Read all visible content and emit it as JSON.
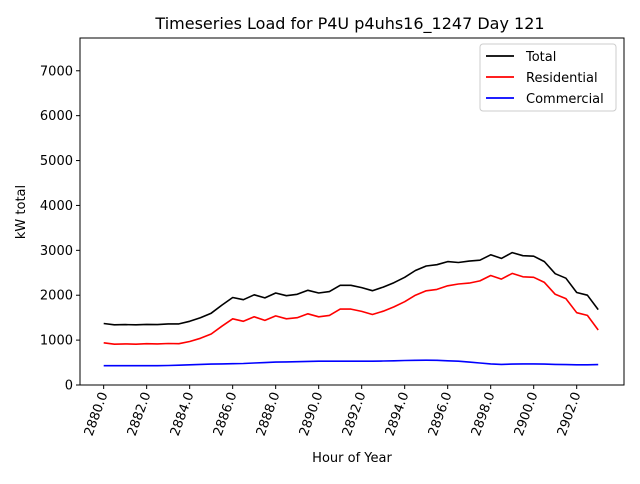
{
  "chart_data": {
    "type": "line",
    "title": "Timeseries Load for P4U p4uhs16_1247  Day 121",
    "xlabel": "Hour of Year",
    "ylabel": "kW total",
    "xlim": [
      2878.9,
      2904.2
    ],
    "ylim": [
      0,
      7730
    ],
    "xticks": [
      2880,
      2882,
      2884,
      2886,
      2888,
      2890,
      2892,
      2894,
      2896,
      2898,
      2900,
      2902
    ],
    "xtick_labels": [
      "2880.0",
      "2882.0",
      "2884.0",
      "2886.0",
      "2888.0",
      "2890.0",
      "2892.0",
      "2894.0",
      "2896.0",
      "2898.0",
      "2900.0",
      "2902.0"
    ],
    "yticks": [
      0,
      1000,
      2000,
      3000,
      4000,
      5000,
      6000,
      7000
    ],
    "ytick_labels": [
      "0",
      "1000",
      "2000",
      "3000",
      "4000",
      "5000",
      "6000",
      "7000"
    ],
    "grid": false,
    "legend_position": "top-right",
    "x_start": 2880,
    "x_step": 0.5,
    "series": [
      {
        "name": "Total",
        "color": "#000000",
        "values": [
          1370,
          1340,
          1345,
          1340,
          1350,
          1345,
          1360,
          1360,
          1420,
          1500,
          1600,
          1780,
          1950,
          1900,
          2010,
          1940,
          2050,
          1990,
          2020,
          2110,
          2050,
          2080,
          2220,
          2220,
          2170,
          2100,
          2180,
          2280,
          2400,
          2550,
          2650,
          2680,
          2750,
          2730,
          2760,
          2780,
          2900,
          2820,
          2950,
          2880,
          2870,
          2750,
          2480,
          2380,
          2060,
          2000,
          1680
        ]
      },
      {
        "name": "Residential",
        "color": "#ff0000",
        "values": [
          940,
          910,
          915,
          910,
          920,
          915,
          925,
          920,
          970,
          1040,
          1135,
          1310,
          1475,
          1420,
          1520,
          1440,
          1540,
          1475,
          1500,
          1585,
          1520,
          1550,
          1690,
          1690,
          1640,
          1570,
          1645,
          1740,
          1855,
          2000,
          2098,
          2130,
          2210,
          2250,
          2270,
          2320,
          2440,
          2360,
          2485,
          2410,
          2400,
          2285,
          2020,
          1925,
          1610,
          1550,
          1225
        ]
      },
      {
        "name": "Commercial",
        "color": "#0000ff",
        "values": [
          430,
          430,
          430,
          430,
          430,
          430,
          435,
          440,
          450,
          460,
          465,
          470,
          475,
          480,
          490,
          500,
          510,
          515,
          520,
          525,
          530,
          530,
          530,
          530,
          530,
          530,
          535,
          540,
          545,
          550,
          552,
          550,
          540,
          530,
          510,
          490,
          470,
          460,
          465,
          470,
          470,
          465,
          460,
          455,
          450,
          450,
          455
        ]
      }
    ]
  }
}
